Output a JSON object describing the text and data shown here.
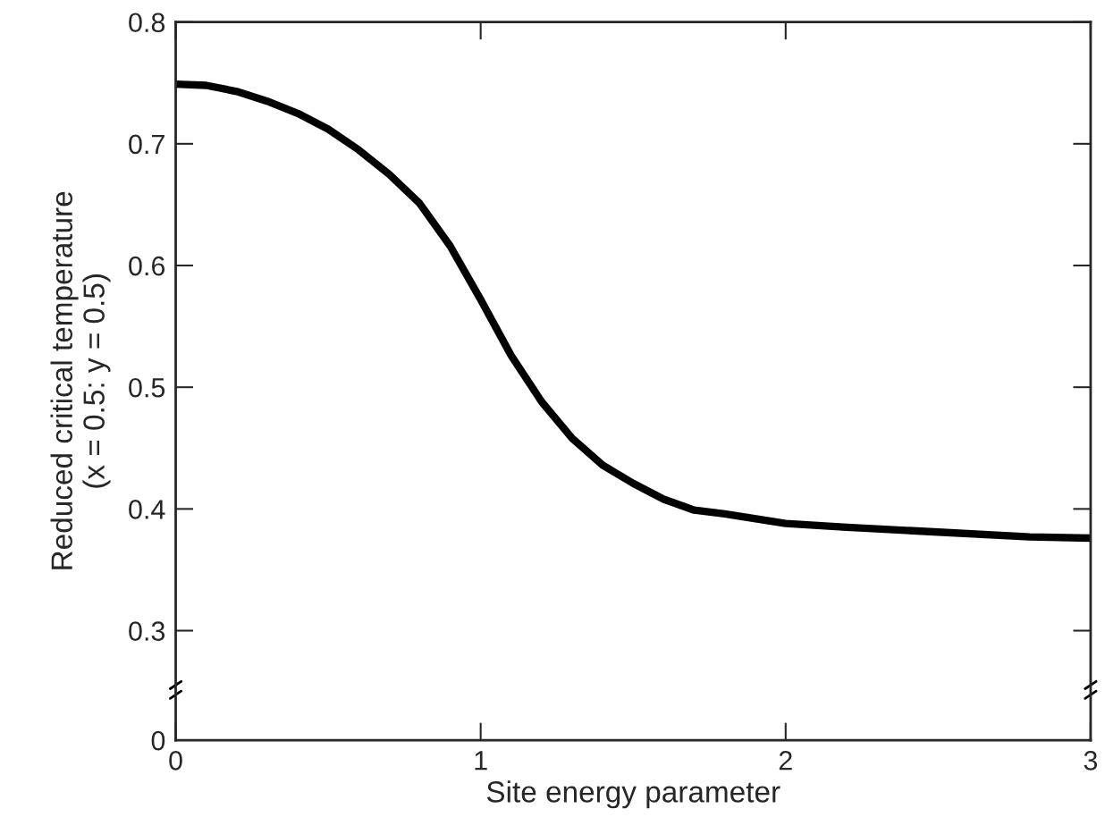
{
  "chart_data": {
    "type": "line",
    "xlabel": "Site energy parameter",
    "ylabel": "Reduced critical temperature\n(x = 0.5: y = 0.5)",
    "xlim": [
      0,
      3
    ],
    "xticks": [
      0,
      1,
      2,
      3
    ],
    "ylim": [
      0.21,
      0.8
    ],
    "yticks": [
      {
        "value": 0.21,
        "label": "0"
      },
      0.3,
      0.4,
      0.5,
      0.6,
      0.7,
      0.8
    ],
    "grid": false,
    "marker": "none",
    "line_style": "solid",
    "series": [
      {
        "color": "#000000",
        "x": [
          0,
          0.1,
          0.2,
          0.3,
          0.4,
          0.5,
          0.6,
          0.7,
          0.8,
          0.9,
          1.0,
          1.1,
          1.2,
          1.3,
          1.4,
          1.5,
          1.6,
          1.7,
          1.8,
          2.0,
          2.2,
          2.5,
          2.8,
          3.0
        ],
        "values": [
          0.749,
          0.748,
          0.743,
          0.735,
          0.725,
          0.712,
          0.695,
          0.675,
          0.651,
          0.616,
          0.572,
          0.526,
          0.488,
          0.458,
          0.436,
          0.421,
          0.408,
          0.399,
          0.396,
          0.388,
          0.385,
          0.381,
          0.377,
          0.376
        ]
      }
    ]
  }
}
